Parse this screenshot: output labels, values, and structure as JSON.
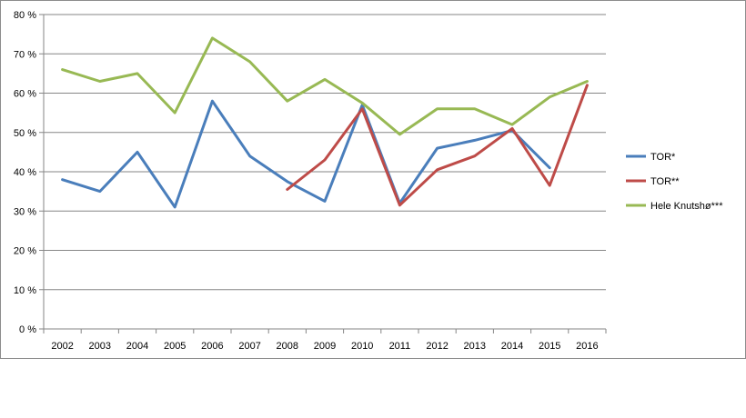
{
  "chart_data": {
    "type": "line",
    "title": "",
    "xlabel": "",
    "ylabel": "",
    "categories": [
      "2002",
      "2003",
      "2004",
      "2005",
      "2006",
      "2007",
      "2008",
      "2009",
      "2010",
      "2011",
      "2012",
      "2013",
      "2014",
      "2015",
      "2016"
    ],
    "ylim": [
      0,
      80
    ],
    "yticks": [
      0,
      10,
      20,
      30,
      40,
      50,
      60,
      70,
      80
    ],
    "ytick_labels": [
      "0 %",
      "10 %",
      "20 %",
      "30 %",
      "40 %",
      "50 %",
      "60 %",
      "70 %",
      "80 %"
    ],
    "grid": true,
    "legend_position": "right",
    "series": [
      {
        "name": "TOR*",
        "color": "#4a7ebb",
        "values": [
          38,
          35,
          45,
          31,
          58,
          44,
          37.5,
          32.5,
          57,
          32,
          46,
          48,
          50.5,
          41,
          null
        ]
      },
      {
        "name": "TOR**",
        "color": "#be4b48",
        "values": [
          null,
          null,
          null,
          null,
          null,
          null,
          35.5,
          43,
          56,
          31.5,
          40.5,
          44,
          51,
          36.5,
          62
        ]
      },
      {
        "name": "Hele Knutshø***",
        "color": "#98b954",
        "values": [
          66,
          63,
          65,
          55,
          74,
          68,
          58,
          63.5,
          57.5,
          49.5,
          56,
          56,
          52,
          59,
          63
        ]
      }
    ]
  }
}
